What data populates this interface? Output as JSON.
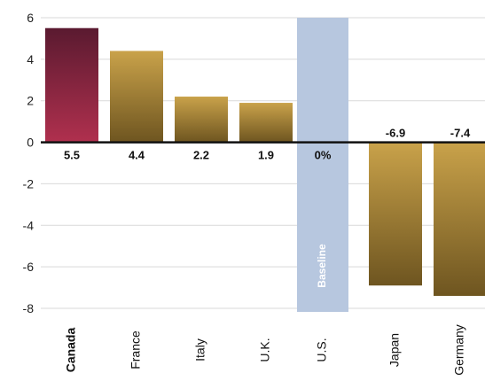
{
  "chart_data": {
    "type": "bar",
    "title": "",
    "xlabel": "",
    "ylabel": "",
    "ylim": [
      -8,
      6
    ],
    "yticks": [
      6,
      4,
      2,
      0,
      -2,
      -4,
      -6,
      -8
    ],
    "grid": true,
    "categories": [
      "Canada",
      "France",
      "Italy",
      "U.K.",
      "U.S.",
      "Japan",
      "Germany"
    ],
    "values": [
      5.5,
      4.4,
      2.2,
      1.9,
      0,
      -6.9,
      -7.4
    ],
    "data_labels": [
      "5.5",
      "4.4",
      "2.2",
      "1.9",
      "0%",
      "-6.9",
      "-7.4"
    ],
    "baseline_category": "U.S.",
    "baseline_label": "Baseline",
    "colors": {
      "highlight_top": "#5a1a30",
      "highlight_bottom": "#b0304e",
      "bar_light": "#c9a24a",
      "bar_dark": "#6e5520",
      "baseline_band": "#b7c7df",
      "grid": "#d9d9d9",
      "zero_line": "#111111"
    }
  }
}
